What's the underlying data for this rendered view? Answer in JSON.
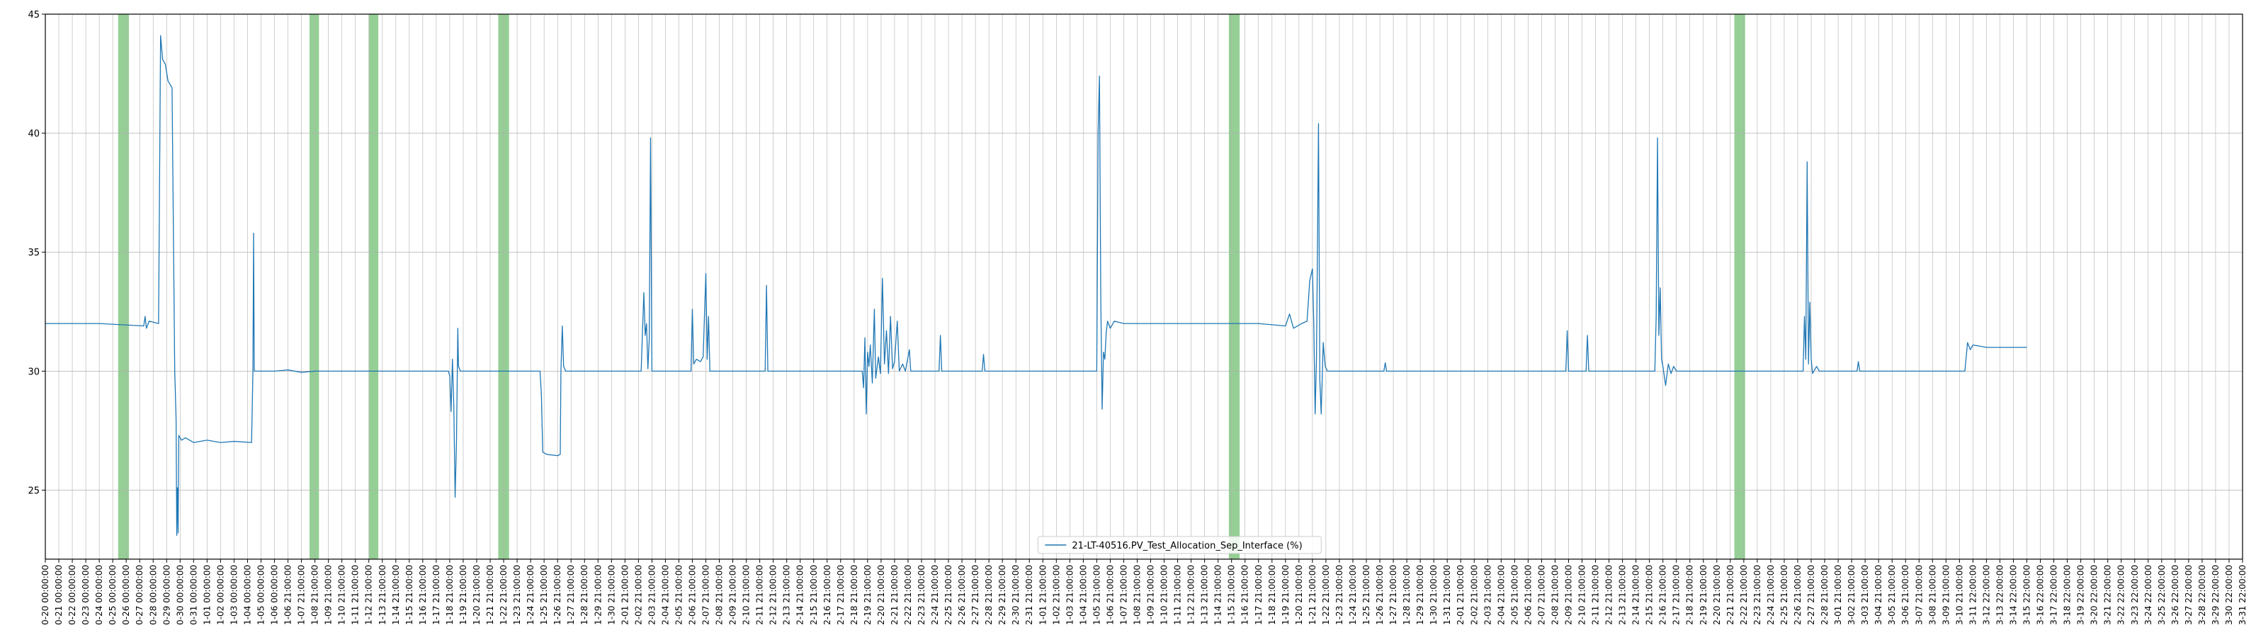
{
  "chart_data": {
    "type": "line",
    "title": "",
    "xlabel": "",
    "ylabel": "",
    "ylim": [
      22.1,
      45.0
    ],
    "yticks": [
      25,
      30,
      35,
      40,
      45
    ],
    "grid": true,
    "legend_placement": "bottom-center",
    "series": [
      {
        "name": "21-LT-40516.PV_Test_Allocation_Sep_Interface (%)",
        "color": "#1f77b4",
        "points": [
          [
            0,
            32.0
          ],
          [
            4,
            32.0
          ],
          [
            7.3,
            31.9
          ],
          [
            7.4,
            32.3
          ],
          [
            7.5,
            31.8
          ],
          [
            7.7,
            32.1
          ],
          [
            8.4,
            32.0
          ],
          [
            8.55,
            44.1
          ],
          [
            8.7,
            43.1
          ],
          [
            8.9,
            42.9
          ],
          [
            9.1,
            42.2
          ],
          [
            9.4,
            41.9
          ],
          [
            9.6,
            30.0
          ],
          [
            9.7,
            28.0
          ],
          [
            9.75,
            23.1
          ],
          [
            9.8,
            25.1
          ],
          [
            9.85,
            23.2
          ],
          [
            9.9,
            27.3
          ],
          [
            10.1,
            27.1
          ],
          [
            10.4,
            27.2
          ],
          [
            11.0,
            27.0
          ],
          [
            12.0,
            27.1
          ],
          [
            13.0,
            27.0
          ],
          [
            14.0,
            27.05
          ],
          [
            15.3,
            27.0
          ],
          [
            15.4,
            30.0
          ],
          [
            15.45,
            35.8
          ],
          [
            15.5,
            30.0
          ],
          [
            17,
            30.0
          ],
          [
            18,
            30.05
          ],
          [
            19,
            29.95
          ],
          [
            20,
            30.0
          ],
          [
            28.0,
            30.0
          ],
          [
            29.9,
            30.0
          ],
          [
            30.0,
            29.8
          ],
          [
            30.1,
            28.3
          ],
          [
            30.2,
            30.5
          ],
          [
            30.3,
            28.6
          ],
          [
            30.4,
            24.7
          ],
          [
            30.5,
            27.0
          ],
          [
            30.6,
            31.8
          ],
          [
            30.65,
            30.2
          ],
          [
            30.8,
            30.0
          ],
          [
            31,
            30.0
          ],
          [
            36.7,
            30.0
          ],
          [
            36.8,
            29.0
          ],
          [
            36.9,
            26.6
          ],
          [
            37.2,
            26.5
          ],
          [
            38.0,
            26.45
          ],
          [
            38.2,
            26.5
          ],
          [
            38.25,
            30.0
          ],
          [
            38.35,
            31.9
          ],
          [
            38.45,
            30.2
          ],
          [
            38.6,
            30.0
          ],
          [
            40,
            30.0
          ],
          [
            41,
            30.0
          ],
          [
            44.2,
            30.0
          ],
          [
            44.4,
            33.3
          ],
          [
            44.5,
            31.5
          ],
          [
            44.6,
            32.0
          ],
          [
            44.7,
            30.1
          ],
          [
            44.8,
            31.3
          ],
          [
            44.9,
            39.8
          ],
          [
            45.0,
            30.0
          ],
          [
            47.9,
            30.0
          ],
          [
            48.0,
            32.6
          ],
          [
            48.1,
            30.3
          ],
          [
            48.3,
            30.5
          ],
          [
            48.6,
            30.4
          ],
          [
            48.8,
            30.6
          ],
          [
            49.0,
            34.1
          ],
          [
            49.1,
            30.5
          ],
          [
            49.2,
            32.3
          ],
          [
            49.3,
            30.0
          ],
          [
            51,
            30.0
          ],
          [
            53.4,
            30.0
          ],
          [
            53.5,
            33.6
          ],
          [
            53.6,
            30.0
          ],
          [
            55,
            30.0
          ],
          [
            60.6,
            30.0
          ],
          [
            60.7,
            29.3
          ],
          [
            60.8,
            31.4
          ],
          [
            60.9,
            28.2
          ],
          [
            61.0,
            30.8
          ],
          [
            61.1,
            30.2
          ],
          [
            61.2,
            31.1
          ],
          [
            61.35,
            29.5
          ],
          [
            61.5,
            32.6
          ],
          [
            61.6,
            29.7
          ],
          [
            61.8,
            30.6
          ],
          [
            61.95,
            29.9
          ],
          [
            62.1,
            33.9
          ],
          [
            62.25,
            30.3
          ],
          [
            62.4,
            31.7
          ],
          [
            62.55,
            29.9
          ],
          [
            62.7,
            32.3
          ],
          [
            62.85,
            30.1
          ],
          [
            63.0,
            30.4
          ],
          [
            63.2,
            32.1
          ],
          [
            63.35,
            30.0
          ],
          [
            63.6,
            30.3
          ],
          [
            63.8,
            30.0
          ],
          [
            64.1,
            30.9
          ],
          [
            64.2,
            30.0
          ],
          [
            65,
            30.0
          ],
          [
            66.3,
            30.0
          ],
          [
            66.4,
            31.5
          ],
          [
            66.5,
            30.0
          ],
          [
            68,
            30.0
          ],
          [
            69.5,
            30.0
          ],
          [
            69.6,
            30.7
          ],
          [
            69.7,
            30.0
          ],
          [
            75,
            30.0
          ],
          [
            78.0,
            30.0
          ],
          [
            78.1,
            40.0
          ],
          [
            78.2,
            42.4
          ],
          [
            78.3,
            33.0
          ],
          [
            78.4,
            28.4
          ],
          [
            78.5,
            30.8
          ],
          [
            78.6,
            30.5
          ],
          [
            78.7,
            31.6
          ],
          [
            78.8,
            32.1
          ],
          [
            79.0,
            31.8
          ],
          [
            79.3,
            32.1
          ],
          [
            80,
            32.0
          ],
          [
            85,
            32.0
          ],
          [
            90,
            32.0
          ],
          [
            92.0,
            31.9
          ],
          [
            92.3,
            32.4
          ],
          [
            92.6,
            31.8
          ],
          [
            93.2,
            32.0
          ],
          [
            93.6,
            32.1
          ],
          [
            93.8,
            33.8
          ],
          [
            94.0,
            34.3
          ],
          [
            94.1,
            32.0
          ],
          [
            94.2,
            28.2
          ],
          [
            94.3,
            30.5
          ],
          [
            94.45,
            40.4
          ],
          [
            94.55,
            29.6
          ],
          [
            94.65,
            28.2
          ],
          [
            94.8,
            31.2
          ],
          [
            94.95,
            30.2
          ],
          [
            95.1,
            30.0
          ],
          [
            96,
            30.0
          ],
          [
            99.3,
            30.0
          ],
          [
            99.4,
            30.35
          ],
          [
            99.5,
            30.0
          ],
          [
            104,
            30.0
          ],
          [
            112.8,
            30.0
          ],
          [
            112.9,
            31.7
          ],
          [
            113.0,
            30.0
          ],
          [
            114.3,
            30.0
          ],
          [
            114.4,
            31.5
          ],
          [
            114.5,
            30.0
          ],
          [
            119.4,
            30.0
          ],
          [
            119.5,
            32.3
          ],
          [
            119.6,
            39.8
          ],
          [
            119.7,
            31.5
          ],
          [
            119.8,
            33.5
          ],
          [
            119.9,
            30.5
          ],
          [
            120.0,
            30.2
          ],
          [
            120.2,
            29.4
          ],
          [
            120.4,
            30.3
          ],
          [
            120.6,
            29.9
          ],
          [
            120.8,
            30.2
          ],
          [
            121,
            30.0
          ],
          [
            125,
            30.0
          ],
          [
            130,
            30.0
          ],
          [
            130.4,
            30.0
          ],
          [
            130.5,
            32.3
          ],
          [
            130.6,
            30.5
          ],
          [
            130.7,
            38.8
          ],
          [
            130.8,
            30.3
          ],
          [
            130.9,
            32.9
          ],
          [
            131.0,
            30.5
          ],
          [
            131.1,
            29.9
          ],
          [
            131.4,
            30.2
          ],
          [
            131.6,
            30.0
          ],
          [
            133,
            30.0
          ],
          [
            134.4,
            30.0
          ],
          [
            134.5,
            30.4
          ],
          [
            134.6,
            30.0
          ],
          [
            140,
            30.0
          ],
          [
            142.4,
            30.0
          ],
          [
            142.6,
            31.2
          ],
          [
            142.8,
            30.9
          ],
          [
            143.0,
            31.1
          ],
          [
            144,
            31.0
          ],
          [
            146,
            31.0
          ],
          [
            147.0,
            31.0
          ]
        ]
      }
    ],
    "shaded_bands": [
      [
        5.4,
        6.2
      ],
      [
        19.6,
        20.3
      ],
      [
        24.0,
        24.7
      ],
      [
        33.6,
        34.4
      ],
      [
        87.8,
        88.6
      ],
      [
        125.3,
        126.1
      ]
    ],
    "shaded_color": "#2ca02c",
    "x_tick_labels": [
      "0-20 00:00:00",
      "0-21 00:00:00",
      "0-22 00:00:00",
      "0-23 00:00:00",
      "0-24 00:00:00",
      "0-25 00:00:00",
      "0-26 00:00:00",
      "0-27 00:00:00",
      "0-28 00:00:00",
      "0-29 00:00:00",
      "0-30 00:00:00",
      "0-31 00:00:00",
      "1-01 00:00:00",
      "1-02 00:00:00",
      "1-03 00:00:00",
      "1-04 00:00:00",
      "1-05 00:00:00",
      "1-06 00:00:00",
      "1-06 21:00:00",
      "1-07 21:00:00",
      "1-08 21:00:00",
      "1-09 21:00:00",
      "1-10 21:00:00",
      "1-11 21:00:00",
      "1-12 21:00:00",
      "1-13 21:00:00",
      "1-14 21:00:00",
      "1-15 21:00:00",
      "1-16 21:00:00",
      "1-17 21:00:00",
      "1-18 21:00:00",
      "1-19 21:00:00",
      "1-20 21:00:00",
      "1-21 21:00:00",
      "1-22 21:00:00",
      "1-23 21:00:00",
      "1-24 21:00:00",
      "1-25 21:00:00",
      "1-26 21:00:00",
      "1-27 21:00:00",
      "1-28 21:00:00",
      "1-29 21:00:00",
      "1-30 21:00:00",
      "2-01 21:00:00",
      "2-02 21:00:00",
      "2-03 21:00:00",
      "2-04 21:00:00",
      "2-05 21:00:00",
      "2-06 21:00:00",
      "2-07 21:00:00",
      "2-08 21:00:00",
      "2-09 21:00:00",
      "2-10 21:00:00",
      "2-11 21:00:00",
      "2-12 21:00:00",
      "2-13 21:00:00",
      "2-14 21:00:00",
      "2-15 21:00:00",
      "2-16 21:00:00",
      "2-17 21:00:00",
      "2-18 21:00:00",
      "2-19 21:00:00",
      "2-20 21:00:00",
      "2-21 21:00:00",
      "2-22 21:00:00",
      "2-23 21:00:00",
      "2-24 21:00:00",
      "2-25 21:00:00",
      "2-26 21:00:00",
      "2-27 21:00:00",
      "2-28 21:00:00",
      "2-29 21:00:00",
      "2-30 21:00:00",
      "2-31 21:00:00",
      "1-01 21:00:00",
      "1-02 21:00:00",
      "1-03 21:00:00",
      "1-04 21:00:00",
      "1-05 21:00:00",
      "1-06 21:00:00",
      "1-07 21:00:00",
      "1-08 21:00:00",
      "1-09 21:00:00",
      "1-10 21:00:00",
      "1-11 21:00:00",
      "1-12 21:00:00",
      "1-13 21:00:00",
      "1-14 21:00:00",
      "1-15 21:00:00",
      "1-16 21:00:00",
      "1-17 21:00:00",
      "1-18 21:00:00",
      "1-19 21:00:00",
      "1-20 21:00:00",
      "1-21 21:00:00",
      "1-22 21:00:00",
      "1-23 21:00:00",
      "1-24 21:00:00",
      "1-25 21:00:00",
      "1-26 21:00:00",
      "1-27 21:00:00",
      "1-28 21:00:00",
      "1-29 21:00:00",
      "1-30 21:00:00",
      "1-31 21:00:00",
      "2-01 21:00:00",
      "2-02 21:00:00",
      "2-03 21:00:00",
      "2-04 21:00:00",
      "2-05 21:00:00",
      "2-06 21:00:00",
      "2-07 21:00:00",
      "2-08 21:00:00",
      "2-09 21:00:00",
      "2-10 21:00:00",
      "2-11 21:00:00",
      "2-12 21:00:00",
      "2-13 21:00:00",
      "2-14 21:00:00",
      "2-15 21:00:00",
      "2-16 21:00:00",
      "2-17 21:00:00",
      "2-18 21:00:00",
      "2-19 21:00:00",
      "2-20 21:00:00",
      "2-21 21:00:00",
      "2-22 21:00:00",
      "2-23 21:00:00",
      "2-24 21:00:00",
      "2-25 21:00:00",
      "2-26 21:00:00",
      "2-27 21:00:00",
      "2-28 21:00:00",
      "3-01 21:00:00",
      "3-02 21:00:00",
      "3-03 21:00:00",
      "3-04 21:00:00",
      "3-05 21:00:00",
      "3-06 21:00:00",
      "3-07 21:00:00",
      "3-08 21:00:00",
      "3-09 21:00:00",
      "3-10 21:00:00",
      "3-11 22:00:00",
      "3-12 22:00:00",
      "3-13 22:00:00",
      "3-14 22:00:00",
      "3-15 22:00:00",
      "3-16 22:00:00",
      "3-17 22:00:00",
      "3-18 22:00:00",
      "3-19 22:00:00",
      "3-20 22:00:00",
      "3-21 22:00:00",
      "3-22 22:00:00",
      "3-23 22:00:00",
      "3-24 22:00:00",
      "3-25 22:00:00",
      "3-26 22:00:00",
      "3-27 22:00:00",
      "3-28 22:00:00",
      "3-29 22:00:00",
      "3-30 22:00:00",
      "3-31 22:00:00"
    ]
  }
}
